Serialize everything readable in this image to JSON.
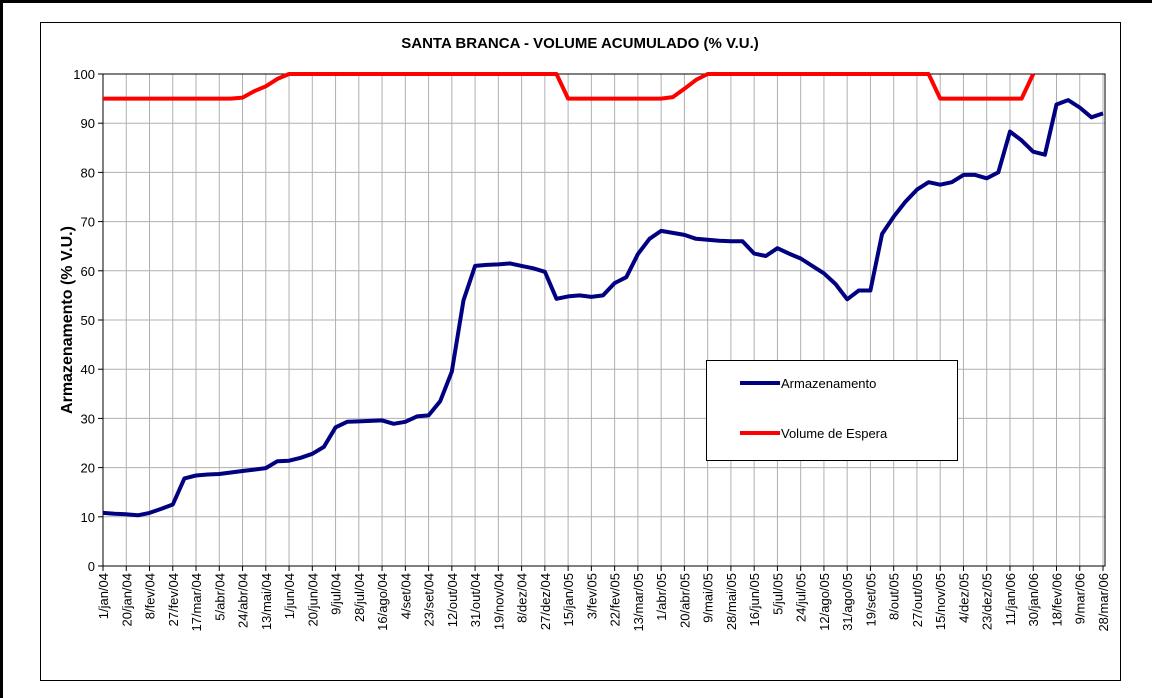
{
  "chart_data": {
    "type": "line",
    "title": "SANTA BRANCA - VOLUME ACUMULADO (% V.U.)",
    "y_label": "Armazenamento (% V.U.)",
    "categories": [
      "1/jan/04",
      null,
      "20/jan/04",
      null,
      "8/fev/04",
      null,
      "27/fev/04",
      null,
      "17/mar/04",
      null,
      "5/abr/04",
      null,
      "24/abr/04",
      null,
      "13/mai/04",
      null,
      "1/jun/04",
      null,
      "20/jun/04",
      null,
      "9/jul/04",
      null,
      "28/jul/04",
      null,
      "16/ago/04",
      null,
      "4/set/04",
      null,
      "23/set/04",
      null,
      "12/out/04",
      null,
      "31/out/04",
      null,
      "19/nov/04",
      null,
      "8/dez/04",
      null,
      "27/dez/04",
      null,
      "15/jan/05",
      null,
      "3/fev/05",
      null,
      "22/fev/05",
      null,
      "13/mar/05",
      null,
      "1/abr/05",
      null,
      "20/abr/05",
      null,
      "9/mai/05",
      null,
      "28/mai/05",
      null,
      "16/jun/05",
      null,
      "5/jul/05",
      null,
      "24/jul/05",
      null,
      "12/ago/05",
      null,
      "31/ago/05",
      null,
      "19/set/05",
      null,
      "8/out/05",
      null,
      "27/out/05",
      null,
      "15/nov/05",
      null,
      "4/dez/05",
      null,
      "23/dez/05",
      null,
      "11/jan/06",
      null,
      "30/jan/06",
      null,
      "18/fev/06",
      null,
      "9/mar/06",
      null,
      "28/mar/06"
    ],
    "series": [
      {
        "name": "Armazenamento",
        "color": "#000080",
        "values": [
          10.8,
          10.6,
          10.5,
          10.3,
          10.8,
          11.6,
          12.5,
          17.8,
          18.4,
          18.6,
          18.7,
          19,
          19.3,
          19.6,
          19.9,
          21.3,
          21.4,
          22,
          22.8,
          24.2,
          28.2,
          29.3,
          29.4,
          29.5,
          29.6,
          28.9,
          29.3,
          30.4,
          30.6,
          33.5,
          39.5,
          54,
          61,
          61.2,
          61.3,
          61.5,
          61,
          60.5,
          59.8,
          54.3,
          54.8,
          55,
          54.7,
          55,
          57.5,
          58.7,
          63.4,
          66.5,
          68.1,
          67.7,
          67.3,
          66.5,
          66.3,
          66.1,
          66,
          66,
          63.5,
          63,
          64.6,
          63.5,
          62.5,
          61,
          59.5,
          57.3,
          54.2,
          56,
          56,
          67.5,
          71,
          74,
          76.5,
          78,
          77.5,
          78,
          79.5,
          79.5,
          78.8,
          80,
          88.3,
          86.5,
          84.2,
          83.6,
          93.8,
          94.7,
          93.2,
          91.2,
          92
        ]
      },
      {
        "name": "Volume de Espera",
        "color": "#ff0000",
        "values": [
          95,
          95,
          95,
          95,
          95,
          95,
          95,
          95,
          95,
          95,
          95,
          95,
          95.2,
          96.5,
          97.5,
          99,
          100,
          100,
          100,
          100,
          100,
          100,
          100,
          100,
          100,
          100,
          100,
          100,
          100,
          100,
          100,
          100,
          100,
          100,
          100,
          100,
          100,
          100,
          100,
          100,
          95,
          95,
          95,
          95,
          95,
          95,
          95,
          95,
          95,
          95.3,
          97,
          98.8,
          100,
          100,
          100,
          100,
          100,
          100,
          100,
          100,
          100,
          100,
          100,
          100,
          100,
          100,
          100,
          100,
          100,
          100,
          100,
          100,
          95,
          95,
          95,
          95,
          95,
          95,
          95,
          95,
          100,
          null,
          null,
          null,
          null,
          null,
          null
        ]
      }
    ],
    "ylim": [
      0,
      100
    ],
    "yticks": [
      0,
      10,
      20,
      30,
      40,
      50,
      60,
      70,
      80,
      90,
      100
    ],
    "grid": true
  }
}
